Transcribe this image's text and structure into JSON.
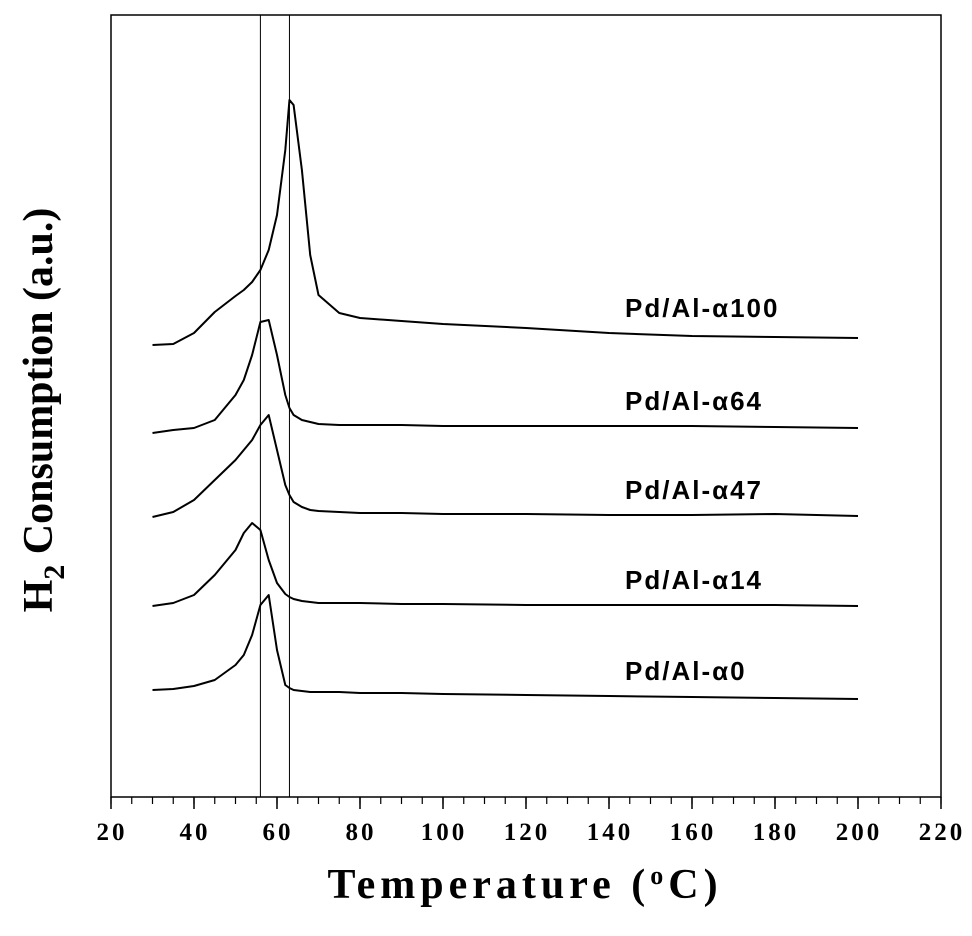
{
  "chart_data": {
    "type": "line",
    "xlabel": [
      "Temperature (",
      "o",
      "C)"
    ],
    "ylabel": [
      "H",
      "2",
      " Consumption (a.u.)"
    ],
    "xlim": [
      20,
      220
    ],
    "xticks": [
      20,
      40,
      60,
      80,
      100,
      120,
      140,
      160,
      180,
      200,
      220
    ],
    "xminor": 5,
    "ylim": [
      0,
      782
    ],
    "vlines": [
      56,
      63
    ],
    "color": "#000000",
    "x": [
      30,
      35,
      40,
      45,
      50,
      52,
      54,
      56,
      58,
      60,
      62,
      63,
      64,
      66,
      68,
      70,
      75,
      80,
      90,
      100,
      120,
      140,
      160,
      180,
      200
    ],
    "series": [
      {
        "name": "Pd/Al-α100",
        "values": [
          452,
          453,
          464,
          485,
          501,
          507,
          515,
          527,
          547,
          582,
          647,
          697,
          692,
          627,
          542,
          502,
          484,
          479,
          476,
          473,
          469,
          464,
          461,
          460,
          459
        ]
      },
      {
        "name": "Pd/Al-α64",
        "values": [
          364,
          367,
          369,
          377,
          402,
          417,
          442,
          475,
          477,
          442,
          402,
          389,
          382,
          377,
          375,
          373,
          372,
          372,
          372,
          371,
          371,
          371,
          371,
          370,
          369
        ]
      },
      {
        "name": "Pd/Al-α47",
        "values": [
          280,
          285,
          297,
          317,
          337,
          347,
          357,
          372,
          382,
          347,
          312,
          302,
          295,
          290,
          287,
          286,
          285,
          284,
          284,
          283,
          283,
          282,
          282,
          283,
          281
        ]
      },
      {
        "name": "Pd/Al-α14",
        "values": [
          191,
          194,
          202,
          222,
          247,
          264,
          274,
          267,
          237,
          214,
          203,
          200,
          198,
          196,
          195,
          194,
          194,
          194,
          193,
          193,
          192,
          192,
          192,
          192,
          191
        ]
      },
      {
        "name": "Pd/Al-α0",
        "values": [
          107,
          108,
          111,
          117,
          132,
          142,
          162,
          192,
          202,
          147,
          112,
          109,
          107,
          106,
          105,
          105,
          105,
          104,
          104,
          103,
          102,
          101,
          100,
          99,
          98
        ]
      }
    ]
  }
}
